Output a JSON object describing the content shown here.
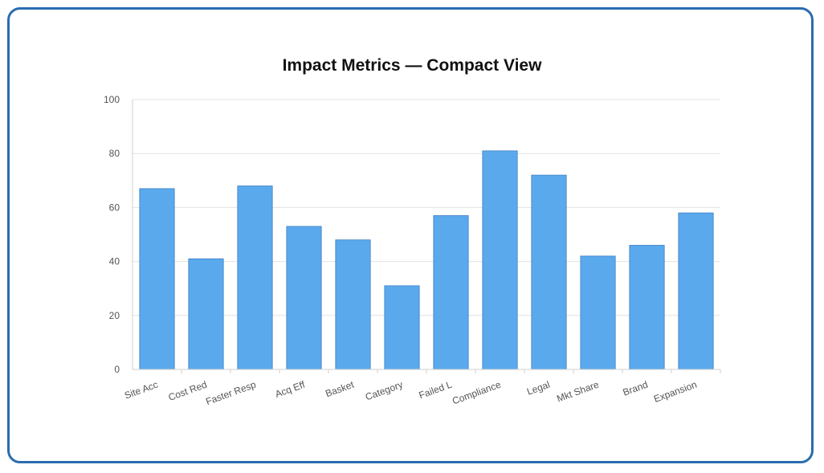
{
  "chart_data": {
    "type": "bar",
    "title": "Impact Metrics — Compact View",
    "categories": [
      "Site Acc",
      "Cost Red",
      "Faster Resp",
      "Acq Eff",
      "Basket",
      "Category",
      "Failed L",
      "Compliance",
      "Legal",
      "Mkt Share",
      "Brand",
      "Expansion"
    ],
    "values": [
      67,
      41,
      68,
      53,
      48,
      31,
      57,
      81,
      72,
      42,
      46,
      58
    ],
    "ylim": [
      0,
      100
    ],
    "yticks": [
      0,
      20,
      40,
      60,
      80,
      100
    ],
    "grid": true,
    "legend": "none",
    "xlabel": "",
    "ylabel": "",
    "bar_color": "#5aa9ec",
    "bar_border_color": "#3d7fc4"
  },
  "frame": {
    "border_color": "#2b6cb0"
  }
}
